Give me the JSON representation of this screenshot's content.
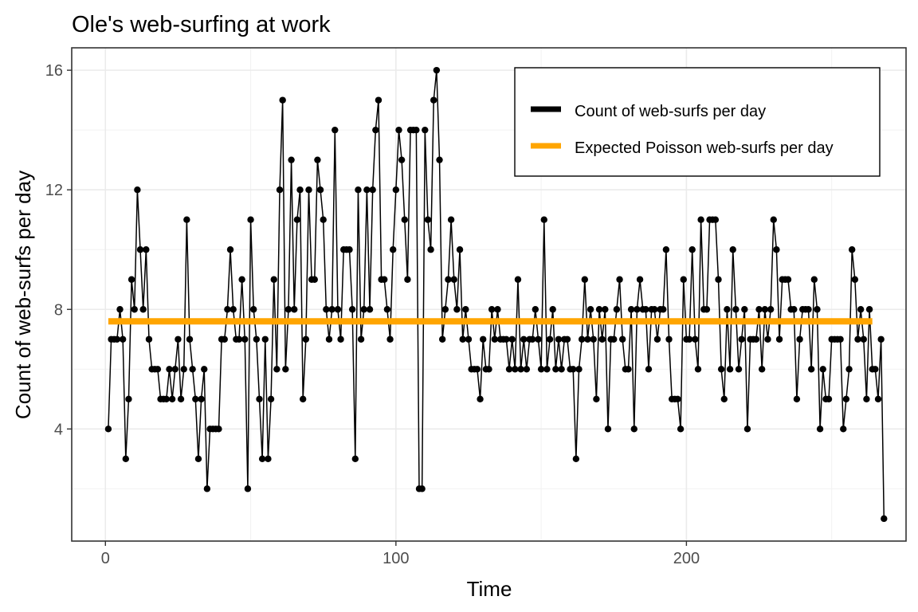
{
  "chart_data": {
    "type": "line",
    "title": "Ole's web-surfing at work",
    "xlabel": "Time",
    "ylabel": "Count of web-surfs per day",
    "xlim": [
      -11.6,
      275.6
    ],
    "ylim": [
      0.25,
      16.75
    ],
    "x_ticks": [
      0,
      100,
      200
    ],
    "y_ticks": [
      4,
      8,
      12,
      16
    ],
    "x_tick_labels": [
      "0",
      "100",
      "200"
    ],
    "y_tick_labels": [
      "4",
      "8",
      "12",
      "16"
    ],
    "grid": true,
    "legend_position": "top-right",
    "series": [
      {
        "name": "Count of web-surfs per day",
        "color": "#000000",
        "markers": true,
        "x_start": 1,
        "values": [
          4,
          7,
          7,
          7,
          8,
          7,
          3,
          5,
          9,
          8,
          12,
          10,
          8,
          10,
          7,
          6,
          6,
          6,
          5,
          5,
          5,
          6,
          5,
          6,
          7,
          5,
          6,
          11,
          7,
          6,
          5,
          3,
          5,
          6,
          2,
          4,
          4,
          4,
          4,
          7,
          7,
          8,
          10,
          8,
          7,
          7,
          9,
          7,
          2,
          11,
          8,
          7,
          5,
          3,
          7,
          3,
          5,
          9,
          6,
          12,
          15,
          6,
          8,
          13,
          8,
          11,
          12,
          5,
          7,
          12,
          9,
          9,
          13,
          12,
          11,
          8,
          7,
          8,
          14,
          8,
          7,
          10,
          10,
          10,
          8,
          3,
          12,
          7,
          8,
          12,
          8,
          12,
          14,
          15,
          9,
          9,
          8,
          7,
          10,
          12,
          14,
          13,
          11,
          9,
          14,
          14,
          14,
          2,
          2,
          14,
          11,
          10,
          15,
          16,
          13,
          7,
          8,
          9,
          11,
          9,
          8,
          10,
          7,
          8,
          7,
          6,
          6,
          6,
          5,
          7,
          6,
          6,
          8,
          7,
          8,
          7,
          7,
          7,
          6,
          7,
          6,
          9,
          6,
          7,
          6,
          7,
          7,
          8,
          7,
          6,
          11,
          6,
          7,
          8,
          6,
          7,
          6,
          7,
          7,
          6,
          6,
          3,
          6,
          7,
          9,
          7,
          8,
          7,
          5,
          8,
          7,
          8,
          4,
          7,
          7,
          8,
          9,
          7,
          6,
          6,
          8,
          4,
          8,
          9,
          8,
          8,
          6,
          8,
          8,
          7,
          8,
          8,
          10,
          7,
          5,
          5,
          5,
          4,
          9,
          7,
          7,
          10,
          7,
          6,
          11,
          8,
          8,
          11,
          11,
          11,
          9,
          6,
          5,
          8,
          6,
          10,
          8,
          6,
          7,
          8,
          4,
          7,
          7,
          7,
          8,
          6,
          8,
          7,
          8,
          11,
          10,
          7,
          9,
          9,
          9,
          8,
          8,
          5,
          7,
          8,
          8,
          8,
          6,
          9,
          8,
          4,
          6,
          5,
          5,
          7,
          7,
          7,
          7,
          4,
          5,
          6,
          10,
          9,
          7,
          8,
          7,
          5,
          8,
          6,
          6,
          5,
          7,
          1
        ]
      },
      {
        "name": "Expected Poisson web-surfs per day",
        "color": "#FFA500",
        "constant": 7.6,
        "x_range": [
          1,
          264
        ]
      }
    ]
  }
}
